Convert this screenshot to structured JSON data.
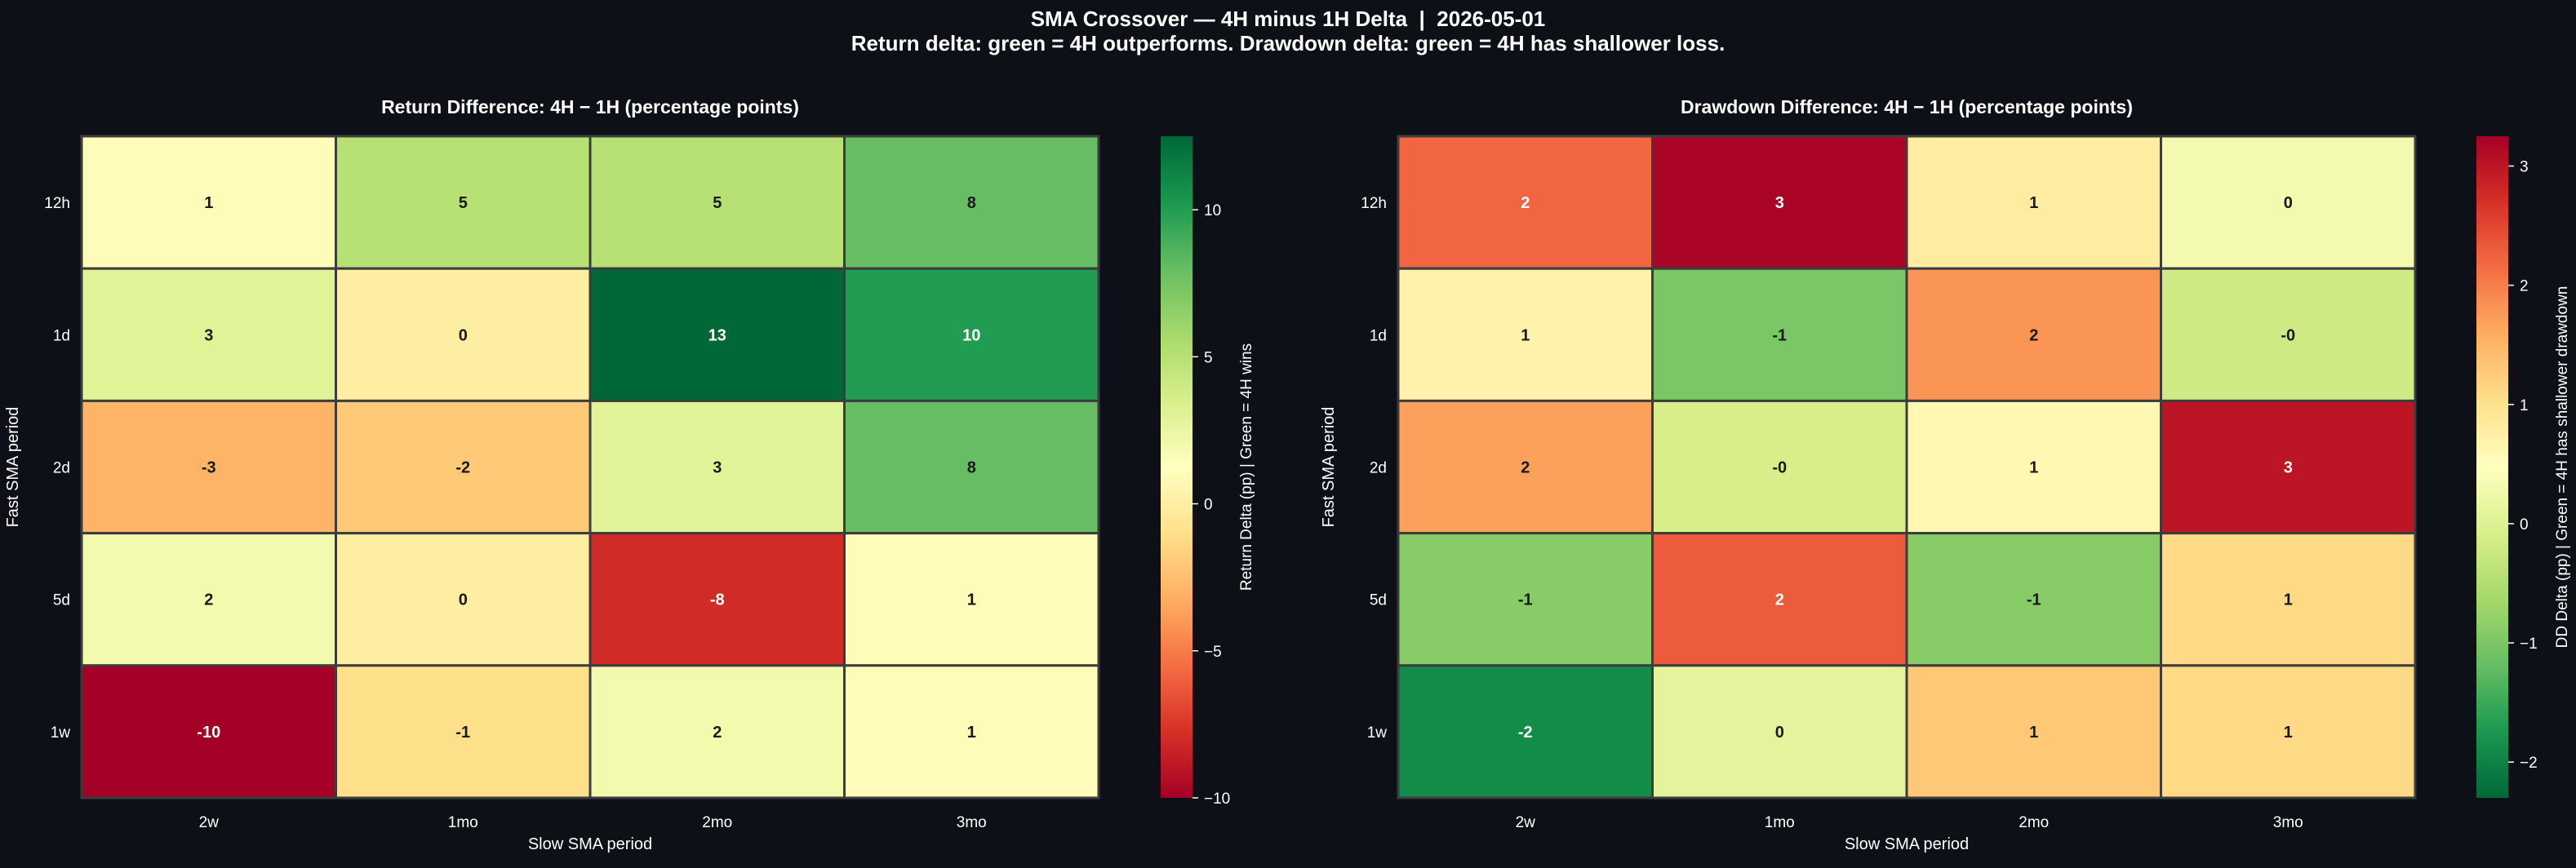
{
  "figure": {
    "title_line1": "SMA Crossover — 4H minus 1H Delta  |  2026-05-01",
    "title_line2": "Return delta: green = 4H outperforms. Drawdown delta: green = 4H has shallower loss.",
    "background": "#0d1117"
  },
  "chart_data": [
    {
      "type": "heatmap",
      "title": "Return Difference: 4H − 1H (percentage points)",
      "xlabel": "Slow SMA period",
      "ylabel": "Fast SMA period",
      "x_categories": [
        "2w",
        "1mo",
        "2mo",
        "3mo"
      ],
      "y_categories": [
        "12h",
        "1d",
        "2d",
        "5d",
        "1w"
      ],
      "values": [
        [
          1,
          5,
          5,
          8
        ],
        [
          3,
          0,
          13,
          10
        ],
        [
          -3,
          -2,
          3,
          8
        ],
        [
          2,
          0,
          -8,
          1
        ],
        [
          -10,
          -1,
          2,
          1
        ]
      ],
      "labels": [
        [
          "1",
          "5",
          "5",
          "8"
        ],
        [
          "3",
          "0",
          "13",
          "10"
        ],
        [
          "-3",
          "-2",
          "3",
          "8"
        ],
        [
          "2",
          "0",
          "-8",
          "1"
        ],
        [
          "-10",
          "-1",
          "2",
          "1"
        ]
      ],
      "colormap": "RdYlGn",
      "colorbar": {
        "label": "Return Delta (pp)  |  Green = 4H wins",
        "range": [
          -10,
          12.5
        ],
        "ticks": [
          -10,
          -5,
          0,
          5,
          10
        ],
        "tick_labels": [
          "−10",
          "−5",
          "0",
          "5",
          "10"
        ]
      }
    },
    {
      "type": "heatmap",
      "title": "Drawdown Difference: 4H − 1H (percentage points)",
      "xlabel": "Slow SMA period",
      "ylabel": "Fast SMA period",
      "x_categories": [
        "2w",
        "1mo",
        "2mo",
        "3mo"
      ],
      "y_categories": [
        "12h",
        "1d",
        "2d",
        "5d",
        "1w"
      ],
      "values": [
        [
          2.2,
          3.2,
          0.8,
          0.3
        ],
        [
          0.7,
          -1.0,
          1.8,
          -0.2
        ],
        [
          1.7,
          -0.1,
          0.6,
          3.0
        ],
        [
          -0.9,
          2.3,
          -0.9,
          1.1
        ],
        [
          -1.9,
          0.1,
          1.3,
          1.1
        ]
      ],
      "labels": [
        [
          "2",
          "3",
          "1",
          "0"
        ],
        [
          "1",
          "-1",
          "2",
          "-0"
        ],
        [
          "2",
          "-0",
          "1",
          "3"
        ],
        [
          "-1",
          "2",
          "-1",
          "1"
        ],
        [
          "-2",
          "0",
          "1",
          "1"
        ]
      ],
      "colormap": "RdYlGn_r",
      "colorbar": {
        "label": "DD Delta (pp)  |  Green = 4H has shallower drawdown",
        "range": [
          -2.3,
          3.25
        ],
        "ticks": [
          -2,
          -1,
          0,
          1,
          2,
          3
        ],
        "tick_labels": [
          "−2",
          "−1",
          "0",
          "1",
          "2",
          "3"
        ]
      }
    }
  ]
}
